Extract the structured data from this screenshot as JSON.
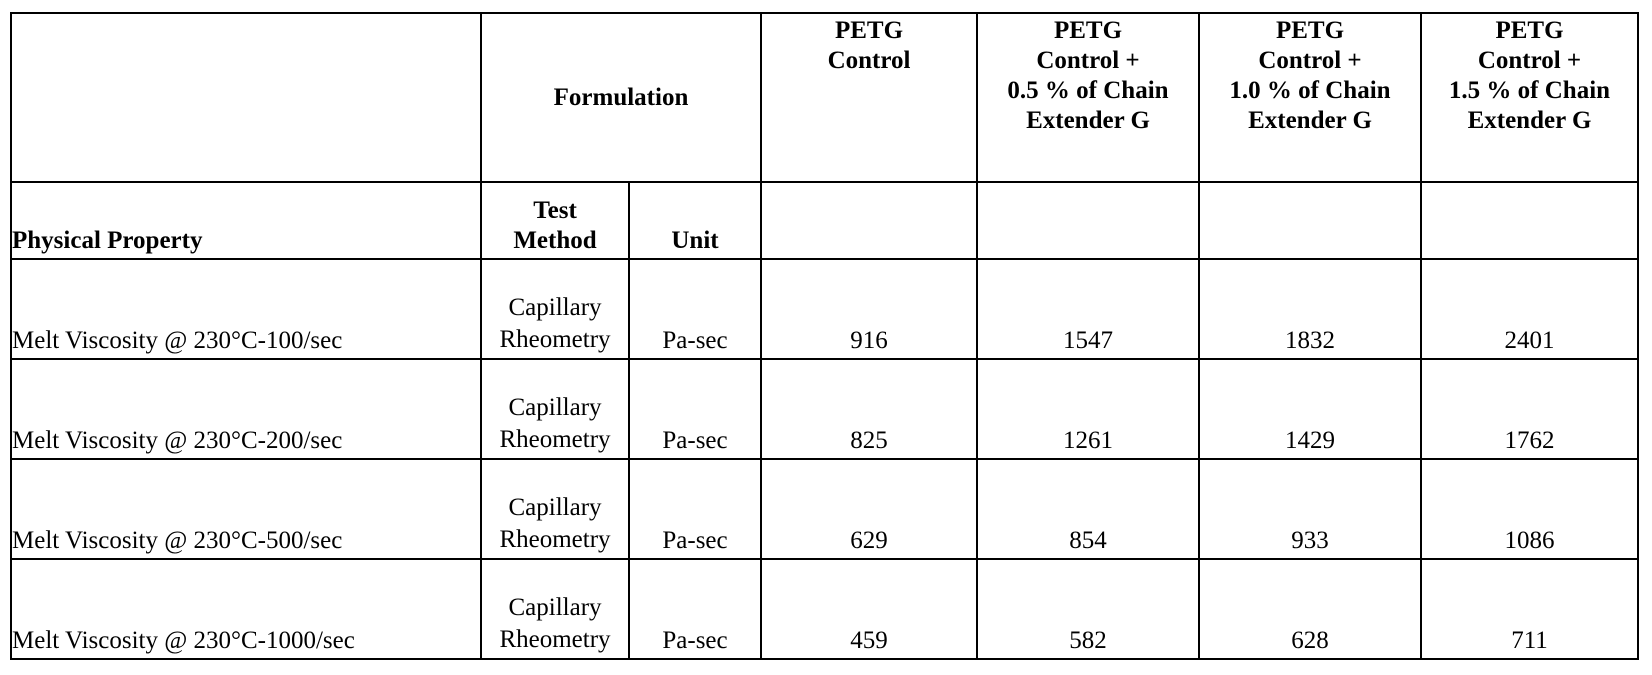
{
  "table": {
    "formulation": "Formulation",
    "columns": [
      [
        "PETG",
        "Control"
      ],
      [
        "PETG",
        "Control +",
        "0.5 % of Chain",
        "Extender G"
      ],
      [
        "PETG",
        "Control +",
        "1.0 % of Chain",
        "Extender G"
      ],
      [
        "PETG",
        "Control +",
        "1.5 % of Chain",
        "Extender G"
      ]
    ],
    "subheader": {
      "property": "Physical Property",
      "test_method": [
        "Test",
        "Method"
      ],
      "unit": "Unit"
    },
    "rows": [
      {
        "property": "Melt Viscosity @ 230°C-100/sec",
        "test_method": [
          "Capillary",
          "Rheometry"
        ],
        "unit": "Pa-sec",
        "values": [
          916,
          1547,
          1832,
          2401
        ]
      },
      {
        "property": "Melt Viscosity @ 230°C-200/sec",
        "test_method": [
          "Capillary",
          "Rheometry"
        ],
        "unit": "Pa-sec",
        "values": [
          825,
          1261,
          1429,
          1762
        ]
      },
      {
        "property": "Melt Viscosity @ 230°C-500/sec",
        "test_method": [
          "Capillary",
          "Rheometry"
        ],
        "unit": "Pa-sec",
        "values": [
          629,
          854,
          933,
          1086
        ]
      },
      {
        "property": "Melt Viscosity @ 230°C-1000/sec",
        "test_method": [
          "Capillary",
          "Rheometry"
        ],
        "unit": "Pa-sec",
        "values": [
          459,
          582,
          628,
          711
        ]
      }
    ]
  }
}
